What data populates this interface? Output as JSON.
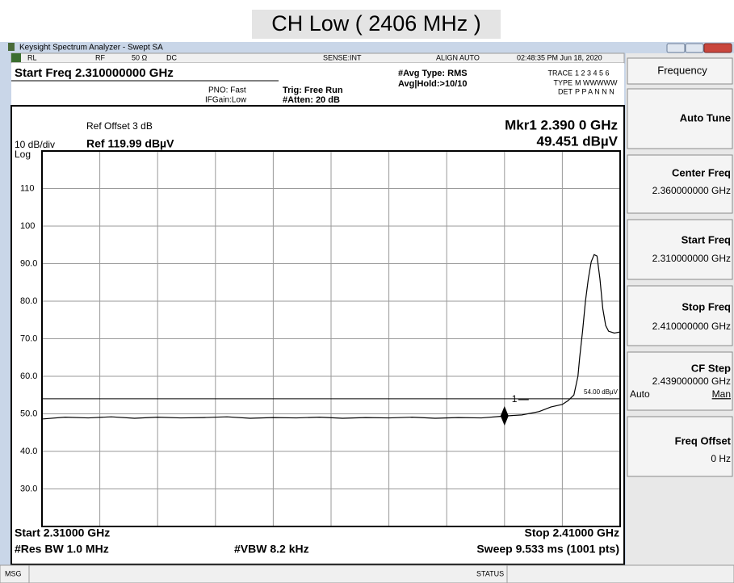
{
  "page_title": "CH Low ( 2406 MHz )",
  "window": {
    "title": "Keysight Spectrum Analyzer - Swept SA"
  },
  "status_row": {
    "ref_mode": "RL",
    "rf": "RF",
    "impedance": "50 Ω",
    "coupling": "DC",
    "sense": "SENSE:INT",
    "align": "ALIGN AUTO",
    "datetime": "02:48:35 PM Jun 18, 2020"
  },
  "settings": {
    "active_function": "Start Freq 2.310000000 GHz",
    "pno": "PNO: Fast",
    "if_gain": "IFGain:Low",
    "trigger": "Trig: Free Run",
    "atten": "#Atten: 20 dB",
    "avg_type": "#Avg Type: RMS",
    "avg_hold": "Avg|Hold:>10/10",
    "trace_label": "TRACE",
    "trace_values": "1 2 3 4 5 6",
    "type_label": "TYPE",
    "type_values": "M WWWWW",
    "det_label": "DET",
    "det_values": "P P A N N N"
  },
  "softkeys": {
    "menu": "Frequency",
    "keys": [
      {
        "label": "Auto Tune"
      },
      {
        "label": "Center Freq",
        "value": "2.360000000 GHz"
      },
      {
        "label": "Start Freq",
        "value": "2.310000000 GHz"
      },
      {
        "label": "Stop Freq",
        "value": "2.410000000 GHz"
      },
      {
        "label": "CF Step",
        "value": "2.439000000 GHz",
        "options": [
          "Auto",
          "Man"
        ]
      },
      {
        "label": "Freq Offset",
        "value": "0 Hz"
      }
    ]
  },
  "chart_data": {
    "type": "line",
    "ref_offset": "Ref Offset 3 dB",
    "scale": "10 dB/div",
    "ref_level": "Ref 119.99 dBµV",
    "scale_type": "Log",
    "marker_readout": "Mkr1 2.390 0 GHz",
    "marker_value": "49.451 dBµV",
    "start": "Start 2.31000 GHz",
    "stop": "Stop 2.41000 GHz",
    "rbw": "#Res BW 1.0 MHz",
    "vbw": "#VBW 8.2 kHz",
    "sweep": "Sweep 9.533 ms (1001 pts)",
    "xlim": [
      2.31,
      2.41
    ],
    "ylim": [
      19.99,
      119.99
    ],
    "yticks": [
      110,
      100,
      {
        "value": 90,
        "label": "90.0"
      },
      {
        "value": 80,
        "label": "80.0"
      },
      {
        "value": 70,
        "label": "70.0"
      },
      {
        "value": 60,
        "label": "60.0"
      },
      {
        "value": 50,
        "label": "50.0"
      },
      {
        "value": 40,
        "label": "40.0"
      },
      {
        "value": 30,
        "label": "30.0"
      }
    ],
    "grid": true,
    "x": [
      2.31,
      2.314,
      2.318,
      2.322,
      2.326,
      2.33,
      2.334,
      2.338,
      2.342,
      2.346,
      2.35,
      2.354,
      2.358,
      2.362,
      2.366,
      2.37,
      2.374,
      2.378,
      2.382,
      2.386,
      2.39,
      2.393,
      2.396,
      2.398,
      2.4,
      2.401,
      2.402,
      2.4027,
      2.403,
      2.4035,
      2.404,
      2.4045,
      2.405,
      2.4055,
      2.406,
      2.4065,
      2.407,
      2.4075,
      2.408,
      2.409,
      2.41
    ],
    "series": [
      {
        "color": "#000000",
        "values": [
          48.6,
          49.1,
          48.9,
          49.2,
          48.8,
          49.1,
          48.9,
          49.0,
          49.2,
          48.8,
          49.0,
          48.9,
          49.1,
          48.8,
          49.0,
          48.9,
          49.1,
          48.8,
          49.0,
          48.9,
          49.4,
          49.7,
          50.6,
          51.8,
          52.5,
          53.5,
          55,
          60,
          65,
          72,
          80,
          86,
          90.5,
          92.4,
          92,
          86,
          78,
          73.5,
          72,
          71.5,
          71.8
        ]
      }
    ],
    "limit_line": {
      "value": 54,
      "label": "54.00 dBµV"
    },
    "marker": {
      "label": "1",
      "x": 2.39,
      "y": 49.451
    }
  },
  "status_bar": {
    "msg": "MSG",
    "status": "STATUS"
  }
}
